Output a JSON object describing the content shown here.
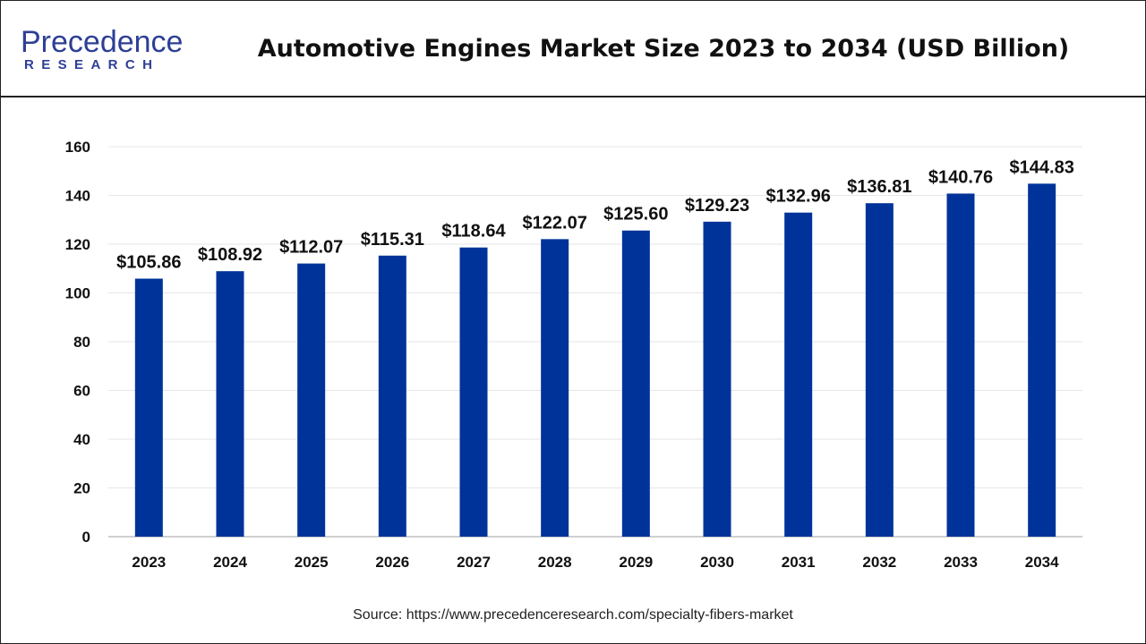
{
  "brand": {
    "name_main": "Precedence",
    "name_sub": "RESEARCH",
    "color": "#2d3f95"
  },
  "chart_data": {
    "type": "bar",
    "title": "Automotive Engines Market Size 2023 to 2034 (USD Billion)",
    "xlabel": "",
    "ylabel": "",
    "categories": [
      "2023",
      "2024",
      "2025",
      "2026",
      "2027",
      "2028",
      "2029",
      "2030",
      "2031",
      "2032",
      "2033",
      "2034"
    ],
    "values": [
      105.86,
      108.92,
      112.07,
      115.31,
      118.64,
      122.07,
      125.6,
      129.23,
      132.96,
      136.81,
      140.76,
      144.83
    ],
    "data_labels": [
      "$105.86",
      "$108.92",
      "$112.07",
      "$115.31",
      "$118.64",
      "$122.07",
      "$125.60",
      "$129.23",
      "$132.96",
      "$136.81",
      "$140.76",
      "$144.83"
    ],
    "ylim": [
      0,
      160
    ],
    "yticks": [
      0,
      20,
      40,
      60,
      80,
      100,
      120,
      140,
      160
    ],
    "grid": true,
    "legend": "none",
    "bar_color": "#003399"
  },
  "source": "Source: https://www.precedenceresearch.com/specialty-fibers-market"
}
